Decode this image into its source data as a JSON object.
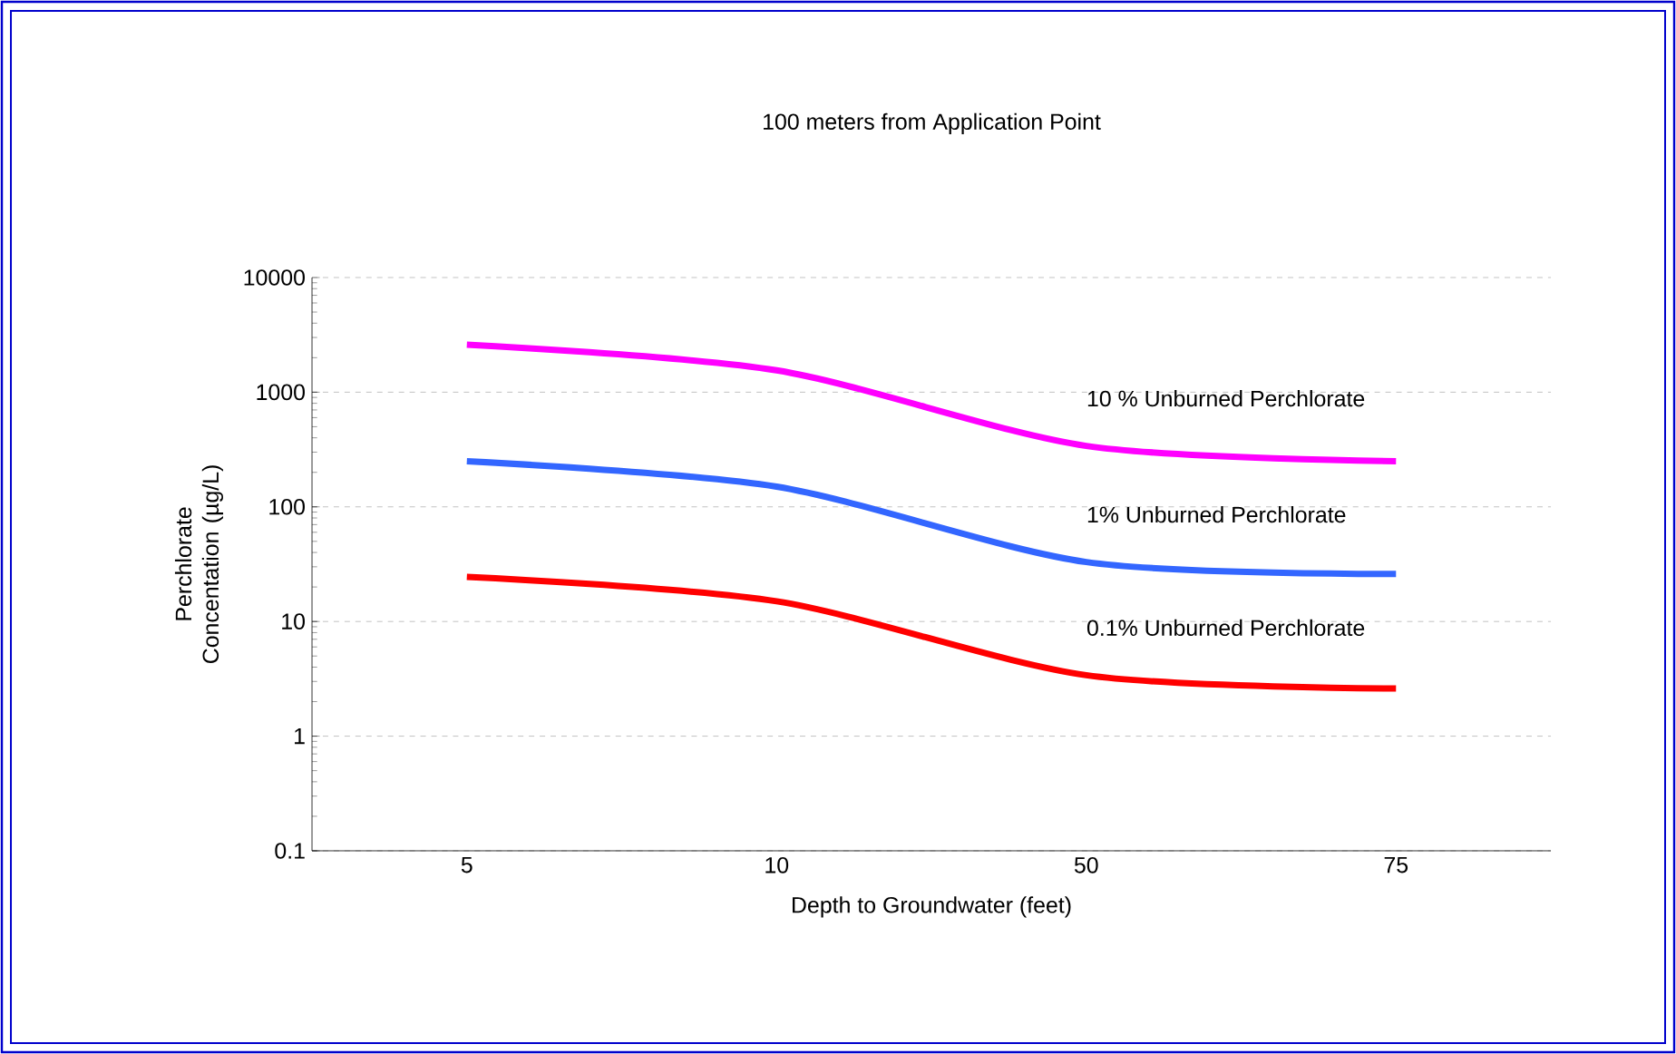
{
  "chart_data": {
    "type": "line",
    "title": "100 meters from Application Point",
    "xlabel": "Depth to Groundwater (feet)",
    "ylabel": "Perchlorate Concentation (µg/L)",
    "categories": [
      "5",
      "10",
      "50",
      "75"
    ],
    "series": [
      {
        "name": "10 % Unburned Perchlorate",
        "color": "#ff00ff",
        "values": [
          2600,
          1550,
          340,
          250
        ]
      },
      {
        "name": "1% Unburned Perchlorate",
        "color": "#3366ff",
        "values": [
          250,
          150,
          33,
          26
        ]
      },
      {
        "name": "0.1% Unburned Perchlorate",
        "color": "#ff0000",
        "values": [
          24.5,
          15,
          3.4,
          2.6
        ]
      }
    ],
    "log": "y",
    "ylim": [
      0.1,
      10000
    ],
    "yticks": [
      0.1,
      1,
      10,
      100,
      1000,
      10000
    ],
    "grid": "y",
    "legend": false,
    "marker": "none",
    "line_style": "solid"
  }
}
